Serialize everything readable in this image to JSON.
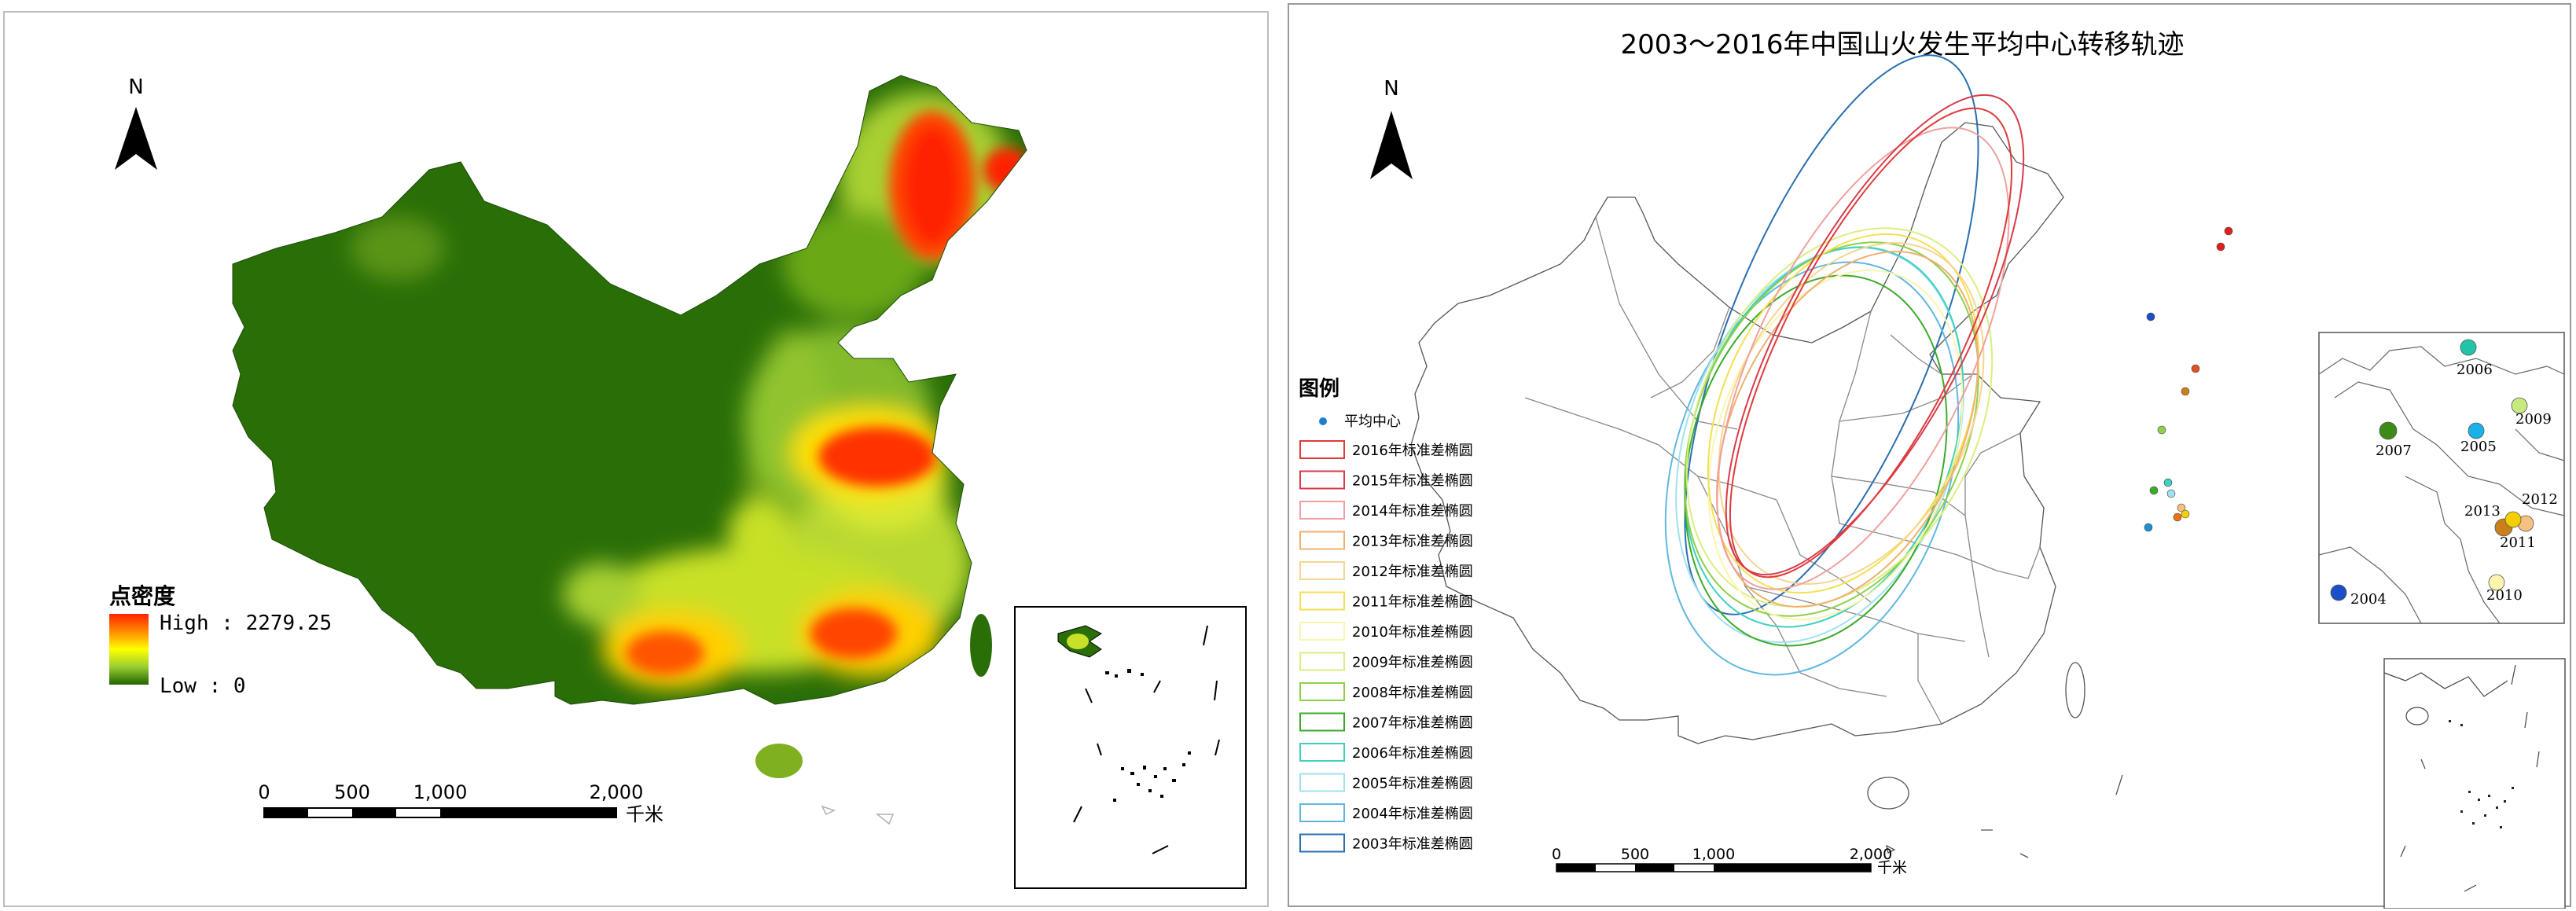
{
  "left_map": {
    "north_label": "N",
    "legend": {
      "title": "点密度",
      "high_label": "High : 2279.25",
      "low_label": "Low : 0",
      "colors": [
        "#ff2200",
        "#ff8c00",
        "#ffff00",
        "#9acd32",
        "#2e7d0a",
        "#1f6500"
      ]
    },
    "scale_bar": {
      "ticks": [
        "0",
        "500",
        "1,000",
        "2,000"
      ],
      "unit": "千米"
    }
  },
  "right_map": {
    "title": "2003～2016年中国山火发生平均中心转移轨迹",
    "north_label": "N",
    "legend": {
      "title": "图例",
      "center_label": "平均中心",
      "items": [
        {
          "label": "2016年标准差椭圆",
          "color": "#e03a3a"
        },
        {
          "label": "2015年标准差椭圆",
          "color": "#d83a4a"
        },
        {
          "label": "2014年标准差椭圆",
          "color": "#f0a0a0"
        },
        {
          "label": "2013年标准差椭圆",
          "color": "#f0b070"
        },
        {
          "label": "2012年标准差椭圆",
          "color": "#f5d590"
        },
        {
          "label": "2011年标准差椭圆",
          "color": "#f5e050"
        },
        {
          "label": "2010年标准差椭圆",
          "color": "#fbf5b0"
        },
        {
          "label": "2009年标准差椭圆",
          "color": "#d8ef80"
        },
        {
          "label": "2008年标准差椭圆",
          "color": "#8fd04a"
        },
        {
          "label": "2007年标准差椭圆",
          "color": "#3aaa2a"
        },
        {
          "label": "2006年标准差椭圆",
          "color": "#3ed0c0"
        },
        {
          "label": "2005年标准差椭圆",
          "color": "#a0e0f0"
        },
        {
          "label": "2004年标准差椭圆",
          "color": "#60b8e0"
        },
        {
          "label": "2003年标准差椭圆",
          "color": "#2a6fb0"
        }
      ]
    },
    "inset_years": [
      {
        "year": "2006",
        "color": "#22c4a8"
      },
      {
        "year": "2009",
        "color": "#c8e880"
      },
      {
        "year": "2007",
        "color": "#3d8a18"
      },
      {
        "year": "2005",
        "color": "#1ab0e8"
      },
      {
        "year": "2012",
        "color": "#f5c080"
      },
      {
        "year": "2013",
        "color": "#c8801a"
      },
      {
        "year": "2011",
        "color": "#f5d000"
      },
      {
        "year": "2004",
        "color": "#1b4fc8"
      },
      {
        "year": "2010",
        "color": "#fbf5b0"
      }
    ],
    "scale_bar": {
      "ticks": [
        "0",
        "500",
        "1,000",
        "2,000"
      ],
      "unit": "千米"
    }
  }
}
